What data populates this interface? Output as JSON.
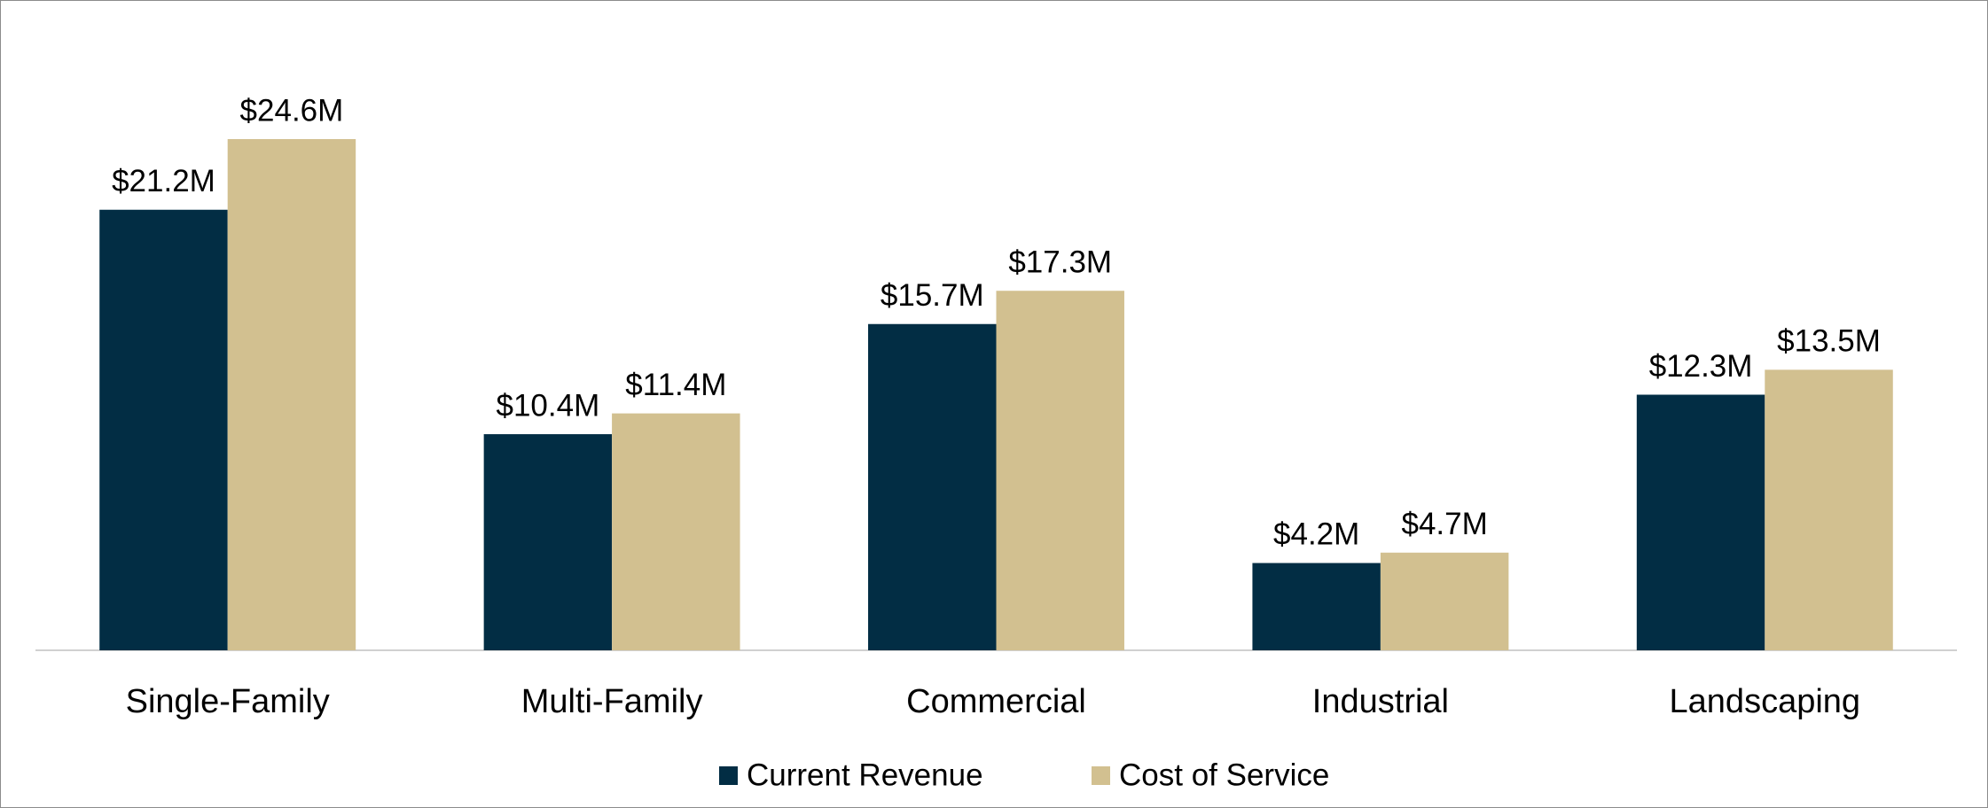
{
  "chart_data": {
    "type": "bar",
    "categories": [
      "Single-Family",
      "Multi-Family",
      "Commercial",
      "Industrial",
      "Landscaping"
    ],
    "series": [
      {
        "name": "Current Revenue",
        "color": "#022d44",
        "values": [
          21.2,
          10.4,
          15.7,
          4.2,
          12.3
        ],
        "value_labels": [
          "$21.2M",
          "$10.4M",
          "$15.7M",
          "$4.2M",
          "$12.3M"
        ]
      },
      {
        "name": "Cost of Service",
        "color": "#d2c090",
        "values": [
          24.6,
          11.4,
          17.3,
          4.7,
          13.5
        ],
        "value_labels": [
          "$24.6M",
          "$11.4M",
          "$17.3M",
          "$4.7M",
          "$13.5M"
        ]
      }
    ],
    "legend": "bottom"
  }
}
